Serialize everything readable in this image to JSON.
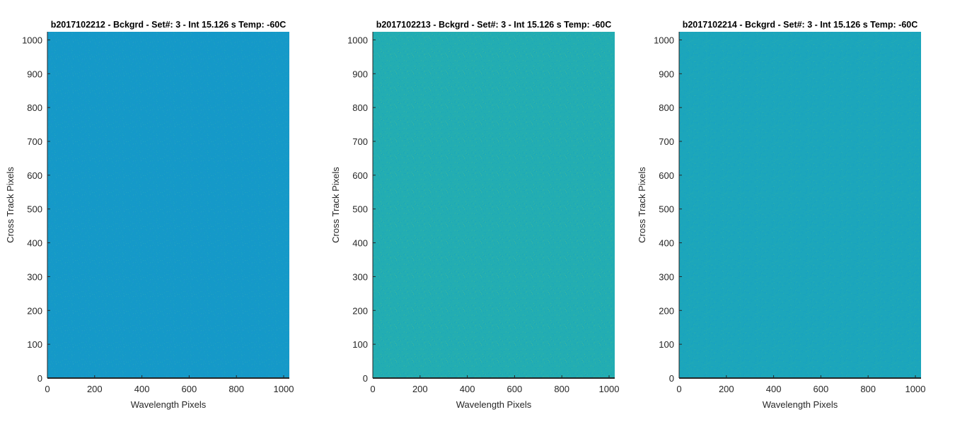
{
  "chart_data": [
    {
      "type": "heatmap",
      "title": "b2017102212 - Bckgrd - Set#: 3 - Int 15.126 s Temp: -60C",
      "xlabel": "Wavelength Pixels",
      "ylabel": "Cross Track Pixels",
      "xlim": [
        0,
        1024
      ],
      "ylim": [
        0,
        1024
      ],
      "xticks": [
        0,
        200,
        400,
        600,
        800,
        1000
      ],
      "yticks": [
        0,
        100,
        200,
        300,
        400,
        500,
        600,
        700,
        800,
        900,
        1000
      ],
      "fill_color": "#1599c8",
      "noise_colors": [
        "#1e9fc4",
        "#1c94cf",
        "#0e9cc9",
        "#24a3c0"
      ]
    },
    {
      "type": "heatmap",
      "title": "b2017102213 - Bckgrd - Set#: 3 - Int 15.126 s Temp: -60C",
      "xlabel": "Wavelength Pixels",
      "ylabel": "Cross Track Pixels",
      "xlim": [
        0,
        1024
      ],
      "ylim": [
        0,
        1024
      ],
      "xticks": [
        0,
        200,
        400,
        600,
        800,
        1000
      ],
      "yticks": [
        0,
        100,
        200,
        300,
        400,
        500,
        600,
        700,
        800,
        900,
        1000
      ],
      "fill_color": "#23adb2",
      "noise_colors": [
        "#3cb59f",
        "#1aa6bb",
        "#2ab3a8",
        "#17a2be"
      ]
    },
    {
      "type": "heatmap",
      "title": "b2017102214 - Bckgrd - Set#: 3 - Int 15.126 s Temp: -60C",
      "xlabel": "Wavelength Pixels",
      "ylabel": "Cross Track Pixels",
      "xlim": [
        0,
        1024
      ],
      "ylim": [
        0,
        1024
      ],
      "xticks": [
        0,
        200,
        400,
        600,
        800,
        1000
      ],
      "yticks": [
        0,
        100,
        200,
        300,
        400,
        500,
        600,
        700,
        800,
        900,
        1000
      ],
      "fill_color": "#1ca6bb",
      "noise_colors": [
        "#2eb0ac",
        "#14a0c2",
        "#22abb3",
        "#179fc5"
      ]
    }
  ]
}
